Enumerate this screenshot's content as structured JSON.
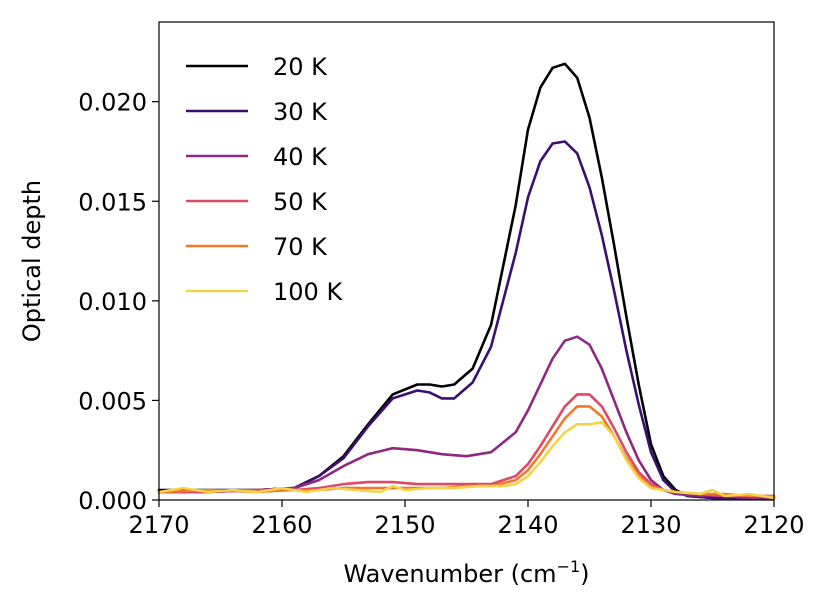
{
  "chart_data": {
    "type": "line",
    "title": "",
    "xlabel": "Wavenumber (cm",
    "xlabel_sup": "−1",
    "xlabel_close": ")",
    "ylabel": "Optical depth",
    "xlim": [
      2170,
      2120
    ],
    "ylim": [
      0,
      0.024
    ],
    "x_reversed": true,
    "grid": false,
    "legend_position": "top-left",
    "x_ticks": [
      2170,
      2160,
      2150,
      2140,
      2130,
      2120
    ],
    "x_tick_labels": [
      "2170",
      "2160",
      "2150",
      "2140",
      "2130",
      "2120"
    ],
    "y_ticks": [
      0,
      0.005,
      0.01,
      0.015,
      0.02
    ],
    "y_tick_labels": [
      "0.000",
      "0.005",
      "0.010",
      "0.015",
      "0.020"
    ],
    "series": [
      {
        "name": "20 K",
        "color": "#000004",
        "x": [
          2170,
          2166,
          2162,
          2159,
          2157,
          2155,
          2153,
          2151,
          2149,
          2148,
          2147,
          2146,
          2144.5,
          2143,
          2141,
          2140,
          2139,
          2138,
          2137,
          2136,
          2135,
          2134,
          2133,
          2132,
          2131,
          2130,
          2129,
          2128,
          2127,
          2125,
          2123,
          2120
        ],
        "y": [
          0.0005,
          0.0005,
          0.0005,
          0.0006,
          0.0012,
          0.0022,
          0.0038,
          0.0053,
          0.0058,
          0.0058,
          0.0057,
          0.0058,
          0.0066,
          0.0088,
          0.0148,
          0.0186,
          0.0207,
          0.0217,
          0.0219,
          0.0212,
          0.0192,
          0.0162,
          0.0128,
          0.0092,
          0.0058,
          0.0028,
          0.0012,
          0.0005,
          0.0002,
          0.0001,
          0.0001,
          0.0001
        ]
      },
      {
        "name": "30 K",
        "color": "#3b0f70",
        "x": [
          2170,
          2166,
          2162,
          2159,
          2157,
          2155,
          2153,
          2151,
          2149,
          2148,
          2147,
          2146,
          2144.5,
          2143,
          2141,
          2140,
          2139,
          2138,
          2137,
          2136,
          2135,
          2134,
          2133,
          2132,
          2131,
          2130,
          2129,
          2128,
          2127,
          2125,
          2123,
          2120
        ],
        "y": [
          0.0004,
          0.0004,
          0.0005,
          0.0006,
          0.0012,
          0.0021,
          0.0037,
          0.0051,
          0.0055,
          0.0054,
          0.0051,
          0.0051,
          0.0059,
          0.0077,
          0.0124,
          0.0152,
          0.017,
          0.0179,
          0.018,
          0.0174,
          0.0157,
          0.0133,
          0.0105,
          0.0075,
          0.0048,
          0.0024,
          0.001,
          0.0004,
          0.0002,
          0.0001,
          0.0001,
          0.0001
        ]
      },
      {
        "name": "40 K",
        "color": "#8c2981",
        "x": [
          2170,
          2166,
          2162,
          2159,
          2157,
          2155,
          2153,
          2151,
          2149,
          2147,
          2145,
          2143,
          2141,
          2140,
          2139,
          2138,
          2137,
          2136,
          2135,
          2134,
          2133,
          2132,
          2131,
          2130,
          2129,
          2128,
          2126,
          2124,
          2122,
          2120
        ],
        "y": [
          0.0004,
          0.0004,
          0.0005,
          0.0006,
          0.001,
          0.0017,
          0.0023,
          0.0026,
          0.0025,
          0.0023,
          0.0022,
          0.0024,
          0.0034,
          0.0045,
          0.0058,
          0.0071,
          0.008,
          0.0082,
          0.0078,
          0.0066,
          0.005,
          0.0034,
          0.002,
          0.001,
          0.0005,
          0.0003,
          0.0002,
          0.0002,
          0.0001,
          0.0001
        ]
      },
      {
        "name": "50 K",
        "color": "#de4968",
        "x": [
          2170,
          2166,
          2162,
          2159,
          2157,
          2155,
          2153,
          2151,
          2149,
          2147,
          2145,
          2143,
          2141,
          2140,
          2139,
          2138,
          2137,
          2136,
          2135,
          2134,
          2133,
          2132,
          2131,
          2130,
          2129,
          2128,
          2126,
          2124,
          2122,
          2120
        ],
        "y": [
          0.0004,
          0.0004,
          0.0005,
          0.0005,
          0.0006,
          0.0008,
          0.0009,
          0.0009,
          0.0008,
          0.0008,
          0.0008,
          0.0008,
          0.0012,
          0.0018,
          0.0027,
          0.0037,
          0.0047,
          0.0053,
          0.0053,
          0.0047,
          0.0036,
          0.0024,
          0.0014,
          0.0008,
          0.0005,
          0.0004,
          0.0003,
          0.0002,
          0.0002,
          0.0002
        ]
      },
      {
        "name": "70 K",
        "color": "#f0782a",
        "x": [
          2170,
          2166,
          2162,
          2159,
          2157,
          2155,
          2153,
          2151,
          2149,
          2147,
          2145,
          2143,
          2141,
          2140,
          2139,
          2138,
          2137,
          2136,
          2135,
          2134,
          2133,
          2132,
          2131,
          2130,
          2129,
          2128,
          2126,
          2124,
          2122,
          2120
        ],
        "y": [
          0.0004,
          0.0005,
          0.0004,
          0.0005,
          0.0005,
          0.0006,
          0.0006,
          0.0006,
          0.0006,
          0.0006,
          0.0007,
          0.0007,
          0.001,
          0.0015,
          0.0023,
          0.0032,
          0.0041,
          0.0047,
          0.0047,
          0.0042,
          0.0032,
          0.0021,
          0.0012,
          0.0007,
          0.0005,
          0.0004,
          0.0003,
          0.0003,
          0.0002,
          0.0002
        ]
      },
      {
        "name": "100 K",
        "color": "#f3d34a",
        "x": [
          2170,
          2168,
          2166,
          2164,
          2162,
          2160,
          2158,
          2156,
          2154,
          2152,
          2151,
          2150,
          2148,
          2146,
          2144,
          2142,
          2141,
          2140,
          2139,
          2138,
          2137,
          2136,
          2135,
          2134,
          2133,
          2132,
          2131,
          2130,
          2129,
          2128,
          2126,
          2125,
          2124,
          2122,
          2120
        ],
        "y": [
          0.0004,
          0.0006,
          0.0004,
          0.0005,
          0.0004,
          0.0006,
          0.0004,
          0.0006,
          0.0005,
          0.0004,
          0.0007,
          0.0005,
          0.0006,
          0.0006,
          0.0007,
          0.0007,
          0.0008,
          0.0012,
          0.0019,
          0.0027,
          0.0034,
          0.0038,
          0.0038,
          0.0039,
          0.0032,
          0.002,
          0.0011,
          0.0006,
          0.0005,
          0.0004,
          0.0003,
          0.0005,
          0.0002,
          0.0003,
          0.0001
        ]
      }
    ]
  }
}
